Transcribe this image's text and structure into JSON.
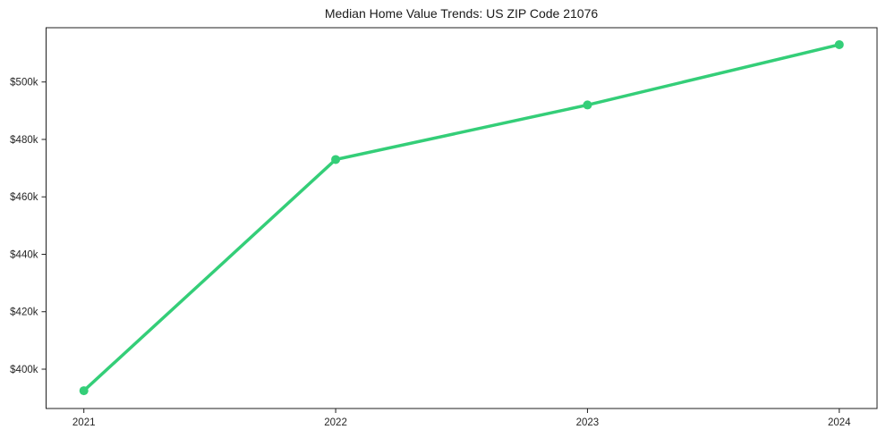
{
  "title": "Median Home Value Trends: US ZIP Code 21076",
  "chart_data": {
    "type": "line",
    "title": "Median Home Value Trends: US ZIP Code 21076",
    "xlabel": "",
    "ylabel": "",
    "x": [
      2021,
      2022,
      2023,
      2024
    ],
    "x_tick_labels": [
      "2021",
      "2022",
      "2023",
      "2024"
    ],
    "series": [
      {
        "name": "Median Home Value",
        "values": [
          392500,
          473000,
          492000,
          513000
        ],
        "color": "#34ce78",
        "marker": "circle"
      }
    ],
    "y_ticks": [
      {
        "value": 400000,
        "label": "$400k"
      },
      {
        "value": 420000,
        "label": "$420k"
      },
      {
        "value": 440000,
        "label": "$440k"
      },
      {
        "value": 460000,
        "label": "$460k"
      },
      {
        "value": 480000,
        "label": "$480k"
      },
      {
        "value": 500000,
        "label": "$500k"
      }
    ],
    "ylim": [
      386300,
      518900
    ],
    "x_margin_frac": 0.05,
    "grid": false,
    "legend": "none",
    "axis_color": "#1f1f1f",
    "text_color": "#262626",
    "background_color": "#ffffff"
  }
}
